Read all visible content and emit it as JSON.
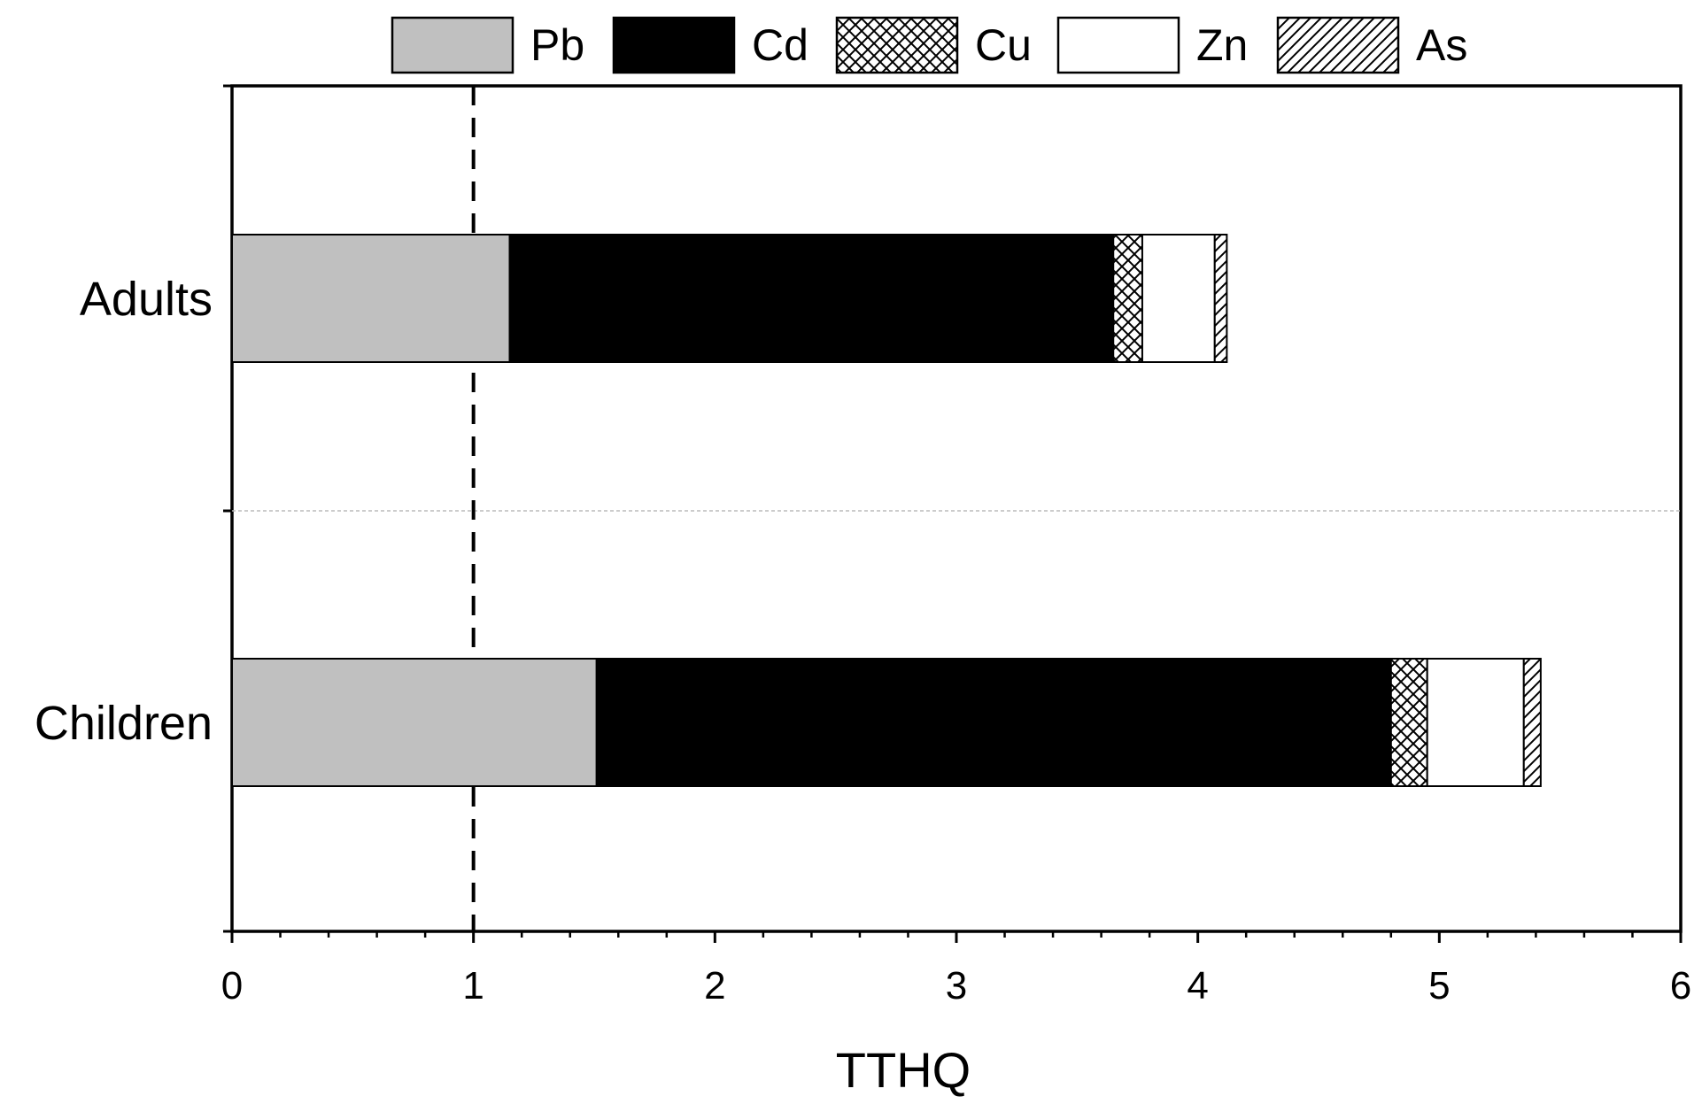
{
  "chart_data": {
    "type": "bar",
    "orientation": "horizontal",
    "stacked": true,
    "categories": [
      "Adults",
      "Children"
    ],
    "series": [
      {
        "name": "Pb",
        "values": [
          1.15,
          1.51
        ],
        "fill": "#c0c0c0",
        "pattern": "solid"
      },
      {
        "name": "Cd",
        "values": [
          2.5,
          3.29
        ],
        "fill": "#000000",
        "pattern": "solid"
      },
      {
        "name": "Cu",
        "values": [
          0.12,
          0.15
        ],
        "fill": "#ffffff",
        "pattern": "crosshatch"
      },
      {
        "name": "Zn",
        "values": [
          0.3,
          0.4
        ],
        "fill": "#ffffff",
        "pattern": "solid"
      },
      {
        "name": "As",
        "values": [
          0.05,
          0.07
        ],
        "fill": "#ffffff",
        "pattern": "diagonal"
      }
    ],
    "xlabel": "TTHQ",
    "ylabel": "",
    "xlim": [
      0,
      6
    ],
    "xticks": [
      "0",
      "1",
      "2",
      "3",
      "4",
      "5",
      "6"
    ],
    "reference_line": {
      "value": 1,
      "style": "dashed"
    },
    "grid": false,
    "legend_position": "top"
  }
}
